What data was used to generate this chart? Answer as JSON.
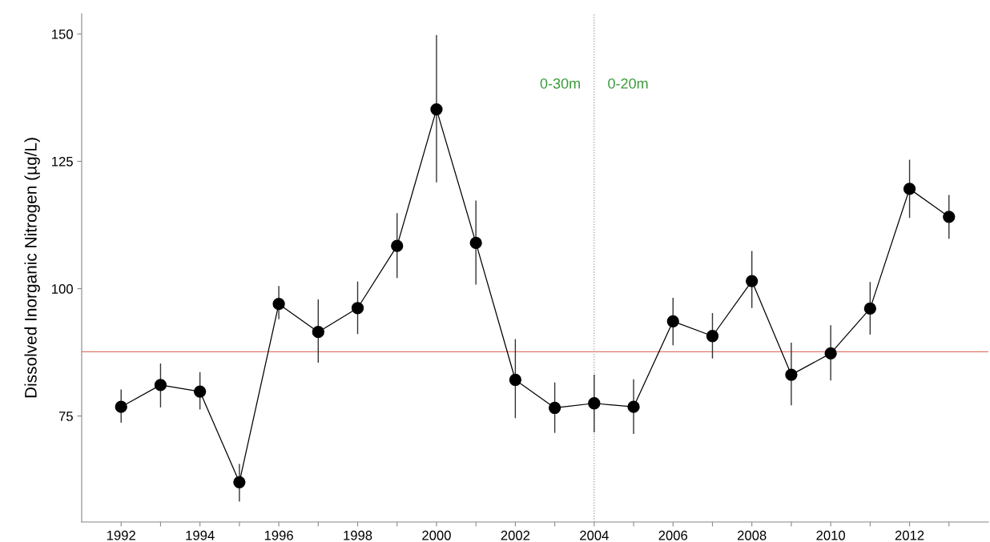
{
  "chart_data": {
    "type": "line",
    "ylabel": "Dissolved Inorganic Nitrogen (µg/L)",
    "x": [
      1992,
      1993,
      1994,
      1995,
      1996,
      1997,
      1998,
      1999,
      2000,
      2001,
      2002,
      2003,
      2004,
      2005,
      2006,
      2007,
      2008,
      2009,
      2010,
      2011,
      2012,
      2013
    ],
    "series": [
      {
        "color": "#000000",
        "values": [
          76.8,
          81.1,
          79.8,
          62.0,
          97.0,
          91.5,
          96.2,
          108.4,
          135.2,
          109.0,
          82.1,
          76.6,
          77.5,
          76.8,
          93.6,
          90.7,
          101.5,
          83.1,
          87.3,
          96.1,
          119.6,
          114.1
        ],
        "errors": [
          [
            73.8,
            80.1
          ],
          [
            76.8,
            85.2
          ],
          [
            76.4,
            83.5
          ],
          [
            58.3,
            65.5
          ],
          [
            94.1,
            100.4
          ],
          [
            85.6,
            97.8
          ],
          [
            91.2,
            101.3
          ],
          [
            102.2,
            114.7
          ],
          [
            121.0,
            149.7
          ],
          [
            100.9,
            117.2
          ],
          [
            74.7,
            90.0
          ],
          [
            71.8,
            81.5
          ],
          [
            71.9,
            83.0
          ],
          [
            71.6,
            82.1
          ],
          [
            89.0,
            98.1
          ],
          [
            86.4,
            95.1
          ],
          [
            96.3,
            107.3
          ],
          [
            77.2,
            89.3
          ],
          [
            82.1,
            92.7
          ],
          [
            91.1,
            101.2
          ],
          [
            114.0,
            125.2
          ],
          [
            109.9,
            118.3
          ]
        ]
      }
    ],
    "marker": "circle",
    "line_style": "solid",
    "xlim": [
      1991,
      2014
    ],
    "xticks": [
      1992,
      {
        "value": 1993,
        "label": null
      },
      1994,
      {
        "value": 1995,
        "label": null
      },
      1996,
      {
        "value": 1997,
        "label": null
      },
      1998,
      {
        "value": 1999,
        "label": null
      },
      2000,
      {
        "value": 2001,
        "label": null
      },
      2002,
      {
        "value": 2003,
        "label": null
      },
      2004,
      {
        "value": 2005,
        "label": null
      },
      2006,
      {
        "value": 2007,
        "label": null
      },
      2008,
      {
        "value": 2009,
        "label": null
      },
      2010,
      {
        "value": 2011,
        "label": null
      },
      2012,
      {
        "value": 2013,
        "label": null
      }
    ],
    "ylim": [
      54.2,
      154
    ],
    "yticks": [
      75,
      100,
      125,
      150
    ],
    "ref_lines": [
      {
        "axis": "y",
        "value": 87.6,
        "color": "#e07a6a",
        "line_style": "solid"
      },
      {
        "axis": "x",
        "value": 2004,
        "color": "#999999",
        "line_style": "dotted"
      }
    ],
    "annotations": [
      "0-30m",
      "0-20m"
    ],
    "grid": false,
    "legend": false
  }
}
